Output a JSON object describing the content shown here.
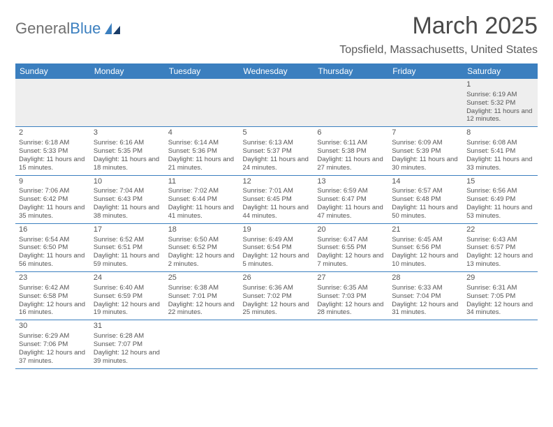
{
  "logo": {
    "text_a": "General",
    "text_b": "Blue"
  },
  "title": "March 2025",
  "location": "Topsfield, Massachusetts, United States",
  "colors": {
    "header_bg": "#3b7fbf",
    "header_fg": "#ffffff",
    "row_border": "#3b7fbf",
    "first_row_bg": "#eeeeee",
    "body_text": "#555555"
  },
  "weekdays": [
    "Sunday",
    "Monday",
    "Tuesday",
    "Wednesday",
    "Thursday",
    "Friday",
    "Saturday"
  ],
  "weeks": [
    [
      null,
      null,
      null,
      null,
      null,
      null,
      {
        "n": "1",
        "sr": "Sunrise: 6:19 AM",
        "ss": "Sunset: 5:32 PM",
        "dl": "Daylight: 11 hours and 12 minutes."
      }
    ],
    [
      {
        "n": "2",
        "sr": "Sunrise: 6:18 AM",
        "ss": "Sunset: 5:33 PM",
        "dl": "Daylight: 11 hours and 15 minutes."
      },
      {
        "n": "3",
        "sr": "Sunrise: 6:16 AM",
        "ss": "Sunset: 5:35 PM",
        "dl": "Daylight: 11 hours and 18 minutes."
      },
      {
        "n": "4",
        "sr": "Sunrise: 6:14 AM",
        "ss": "Sunset: 5:36 PM",
        "dl": "Daylight: 11 hours and 21 minutes."
      },
      {
        "n": "5",
        "sr": "Sunrise: 6:13 AM",
        "ss": "Sunset: 5:37 PM",
        "dl": "Daylight: 11 hours and 24 minutes."
      },
      {
        "n": "6",
        "sr": "Sunrise: 6:11 AM",
        "ss": "Sunset: 5:38 PM",
        "dl": "Daylight: 11 hours and 27 minutes."
      },
      {
        "n": "7",
        "sr": "Sunrise: 6:09 AM",
        "ss": "Sunset: 5:39 PM",
        "dl": "Daylight: 11 hours and 30 minutes."
      },
      {
        "n": "8",
        "sr": "Sunrise: 6:08 AM",
        "ss": "Sunset: 5:41 PM",
        "dl": "Daylight: 11 hours and 33 minutes."
      }
    ],
    [
      {
        "n": "9",
        "sr": "Sunrise: 7:06 AM",
        "ss": "Sunset: 6:42 PM",
        "dl": "Daylight: 11 hours and 35 minutes."
      },
      {
        "n": "10",
        "sr": "Sunrise: 7:04 AM",
        "ss": "Sunset: 6:43 PM",
        "dl": "Daylight: 11 hours and 38 minutes."
      },
      {
        "n": "11",
        "sr": "Sunrise: 7:02 AM",
        "ss": "Sunset: 6:44 PM",
        "dl": "Daylight: 11 hours and 41 minutes."
      },
      {
        "n": "12",
        "sr": "Sunrise: 7:01 AM",
        "ss": "Sunset: 6:45 PM",
        "dl": "Daylight: 11 hours and 44 minutes."
      },
      {
        "n": "13",
        "sr": "Sunrise: 6:59 AM",
        "ss": "Sunset: 6:47 PM",
        "dl": "Daylight: 11 hours and 47 minutes."
      },
      {
        "n": "14",
        "sr": "Sunrise: 6:57 AM",
        "ss": "Sunset: 6:48 PM",
        "dl": "Daylight: 11 hours and 50 minutes."
      },
      {
        "n": "15",
        "sr": "Sunrise: 6:56 AM",
        "ss": "Sunset: 6:49 PM",
        "dl": "Daylight: 11 hours and 53 minutes."
      }
    ],
    [
      {
        "n": "16",
        "sr": "Sunrise: 6:54 AM",
        "ss": "Sunset: 6:50 PM",
        "dl": "Daylight: 11 hours and 56 minutes."
      },
      {
        "n": "17",
        "sr": "Sunrise: 6:52 AM",
        "ss": "Sunset: 6:51 PM",
        "dl": "Daylight: 11 hours and 59 minutes."
      },
      {
        "n": "18",
        "sr": "Sunrise: 6:50 AM",
        "ss": "Sunset: 6:52 PM",
        "dl": "Daylight: 12 hours and 2 minutes."
      },
      {
        "n": "19",
        "sr": "Sunrise: 6:49 AM",
        "ss": "Sunset: 6:54 PM",
        "dl": "Daylight: 12 hours and 5 minutes."
      },
      {
        "n": "20",
        "sr": "Sunrise: 6:47 AM",
        "ss": "Sunset: 6:55 PM",
        "dl": "Daylight: 12 hours and 7 minutes."
      },
      {
        "n": "21",
        "sr": "Sunrise: 6:45 AM",
        "ss": "Sunset: 6:56 PM",
        "dl": "Daylight: 12 hours and 10 minutes."
      },
      {
        "n": "22",
        "sr": "Sunrise: 6:43 AM",
        "ss": "Sunset: 6:57 PM",
        "dl": "Daylight: 12 hours and 13 minutes."
      }
    ],
    [
      {
        "n": "23",
        "sr": "Sunrise: 6:42 AM",
        "ss": "Sunset: 6:58 PM",
        "dl": "Daylight: 12 hours and 16 minutes."
      },
      {
        "n": "24",
        "sr": "Sunrise: 6:40 AM",
        "ss": "Sunset: 6:59 PM",
        "dl": "Daylight: 12 hours and 19 minutes."
      },
      {
        "n": "25",
        "sr": "Sunrise: 6:38 AM",
        "ss": "Sunset: 7:01 PM",
        "dl": "Daylight: 12 hours and 22 minutes."
      },
      {
        "n": "26",
        "sr": "Sunrise: 6:36 AM",
        "ss": "Sunset: 7:02 PM",
        "dl": "Daylight: 12 hours and 25 minutes."
      },
      {
        "n": "27",
        "sr": "Sunrise: 6:35 AM",
        "ss": "Sunset: 7:03 PM",
        "dl": "Daylight: 12 hours and 28 minutes."
      },
      {
        "n": "28",
        "sr": "Sunrise: 6:33 AM",
        "ss": "Sunset: 7:04 PM",
        "dl": "Daylight: 12 hours and 31 minutes."
      },
      {
        "n": "29",
        "sr": "Sunrise: 6:31 AM",
        "ss": "Sunset: 7:05 PM",
        "dl": "Daylight: 12 hours and 34 minutes."
      }
    ],
    [
      {
        "n": "30",
        "sr": "Sunrise: 6:29 AM",
        "ss": "Sunset: 7:06 PM",
        "dl": "Daylight: 12 hours and 37 minutes."
      },
      {
        "n": "31",
        "sr": "Sunrise: 6:28 AM",
        "ss": "Sunset: 7:07 PM",
        "dl": "Daylight: 12 hours and 39 minutes."
      },
      null,
      null,
      null,
      null,
      null
    ]
  ]
}
